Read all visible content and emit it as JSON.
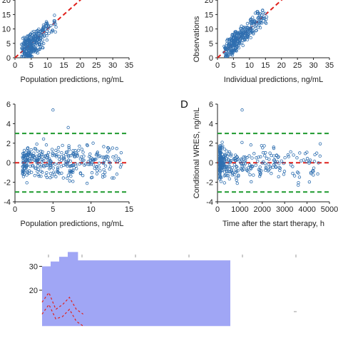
{
  "colors": {
    "points": "#2f6fb0",
    "identity_line": "#e0201b",
    "zero_line": "#e0201b",
    "bound_lines": "#1e9a2e",
    "vpc_band": "#a0a6f5",
    "axis": "#222222"
  },
  "chart_data": [
    {
      "id": "A",
      "type": "scatter",
      "panel_label": "",
      "xlabel": "Population predictions, ng/mL",
      "ylabel": "",
      "xlim": [
        0,
        35
      ],
      "ylim": [
        0,
        25
      ],
      "xticks": [
        "0",
        "5",
        "10",
        "15",
        "20",
        "25",
        "30",
        "35"
      ],
      "yticks": [
        "0",
        "5",
        "10",
        "15",
        "20"
      ],
      "reference_lines": [
        {
          "type": "identity",
          "style": "dashed",
          "color_key": "identity_line"
        }
      ],
      "point_cloud": {
        "n": 300,
        "x_range": [
          0.5,
          13
        ],
        "y_range": [
          0.5,
          17
        ],
        "center": [
          5,
          5
        ]
      }
    },
    {
      "id": "B",
      "type": "scatter",
      "panel_label": "",
      "xlabel": "Individual predictions, ng/mL",
      "ylabel": "Observations",
      "xlim": [
        0,
        35
      ],
      "ylim": [
        0,
        25
      ],
      "xticks": [
        "0",
        "5",
        "10",
        "15",
        "20",
        "25",
        "30",
        "35"
      ],
      "yticks": [
        "0",
        "5",
        "10",
        "15",
        "20"
      ],
      "reference_lines": [
        {
          "type": "identity",
          "style": "dashed",
          "color_key": "identity_line"
        }
      ],
      "point_cloud": {
        "n": 300,
        "x_range": [
          0.5,
          16
        ],
        "y_range": [
          0.5,
          24
        ],
        "center": [
          5,
          5
        ]
      }
    },
    {
      "id": "C",
      "type": "scatter",
      "panel_label": "",
      "xlabel": "Population predictions, ng/mL",
      "ylabel": "",
      "xlim": [
        0,
        15
      ],
      "ylim": [
        -4,
        6
      ],
      "xticks": [
        "0",
        "5",
        "10",
        "15"
      ],
      "yticks": [
        "-4",
        "-2",
        "0",
        "2",
        "4",
        "6"
      ],
      "reference_lines": [
        {
          "y": 0,
          "style": "dashed",
          "color_key": "zero_line"
        },
        {
          "y": 3,
          "style": "dashed",
          "color_key": "bound_lines"
        },
        {
          "y": -3,
          "style": "dashed",
          "color_key": "bound_lines"
        }
      ],
      "point_cloud": {
        "n": 340,
        "x_range": [
          1,
          14
        ],
        "y_range": [
          -2.5,
          3.5
        ],
        "center": [
          4.5,
          0
        ]
      },
      "outliers": [
        {
          "x": 5.0,
          "y": 5.4
        },
        {
          "x": 7.0,
          "y": 3.6
        }
      ]
    },
    {
      "id": "D",
      "type": "scatter",
      "panel_label": "D",
      "xlabel": "Time after the start therapy, h",
      "ylabel": "Conditional WRES, ng/mL",
      "xlim": [
        0,
        5000
      ],
      "ylim": [
        -4,
        6
      ],
      "xticks": [
        "0",
        "1000",
        "2000",
        "3000",
        "4000",
        "5000"
      ],
      "yticks": [
        "-4",
        "-2",
        "0",
        "2",
        "4",
        "6"
      ],
      "reference_lines": [
        {
          "y": 0,
          "style": "dashed",
          "color_key": "zero_line"
        },
        {
          "y": 3,
          "style": "dashed",
          "color_key": "bound_lines"
        },
        {
          "y": -3,
          "style": "dashed",
          "color_key": "bound_lines"
        }
      ],
      "point_cloud": {
        "n": 340,
        "x_range": [
          100,
          4600
        ],
        "y_range": [
          -2.5,
          3
        ],
        "center": [
          400,
          0
        ]
      },
      "outliers": [
        {
          "x": 1100,
          "y": 5.4
        }
      ]
    },
    {
      "id": "E",
      "type": "area",
      "panel_label": "",
      "xlabel": "",
      "ylabel": "",
      "ylim": [
        0,
        40
      ],
      "yticks": [
        "20",
        "30"
      ],
      "band_top_steps": [
        {
          "x0": 0,
          "x1": 10,
          "y": 30
        },
        {
          "x0": 10,
          "x1": 20,
          "y": 32
        },
        {
          "x0": 20,
          "x1": 30,
          "y": 34
        },
        {
          "x0": 30,
          "x1": 42,
          "y": 36
        },
        {
          "x0": 42,
          "x1": 220,
          "y": 32.5
        }
      ],
      "band_bottom": 5,
      "lines": [
        {
          "color_key": "identity_line",
          "style": "dashed",
          "y": [
            15,
            19,
            12,
            14,
            17,
            12,
            10
          ]
        },
        {
          "color_key": "identity_line",
          "style": "dashed",
          "y": [
            10,
            14,
            8,
            9,
            12,
            7,
            5
          ]
        }
      ]
    }
  ]
}
